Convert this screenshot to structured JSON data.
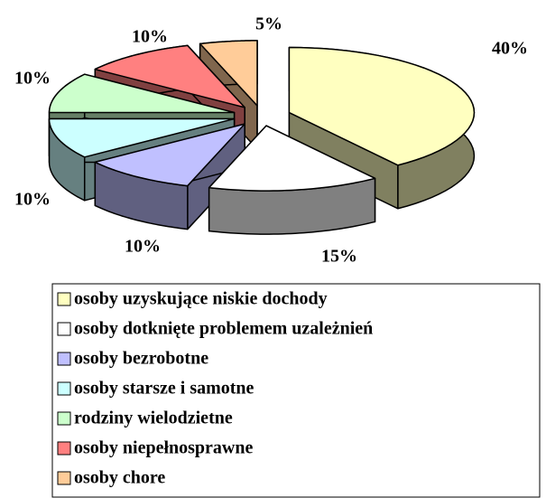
{
  "chart_data": {
    "type": "pie",
    "categories": [
      "osoby uzyskujące niskie dochody",
      "osoby dotknięte problemem uzależnień",
      "osoby bezrobotne",
      "osoby starsze i samotne",
      "rodziny wielodzietne",
      "osoby niepełnosprawne",
      "osoby chore"
    ],
    "values": [
      40,
      15,
      10,
      10,
      10,
      10,
      5
    ],
    "value_labels": [
      "40%",
      "15%",
      "10%",
      "10%",
      "10%",
      "10%",
      "5%"
    ],
    "colors": [
      "#ffffc0",
      "#ffffff",
      "#c0c0ff",
      "#ccffff",
      "#ccffcc",
      "#ff8080",
      "#ffcc99"
    ]
  }
}
